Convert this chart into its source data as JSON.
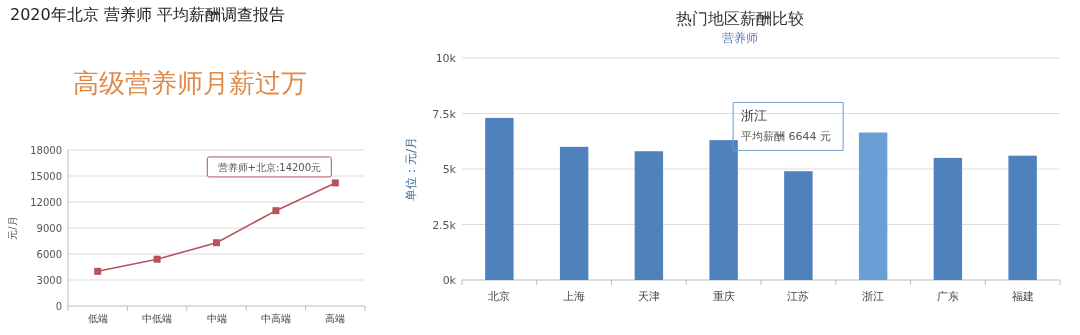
{
  "chart_data": [
    {
      "type": "line",
      "title": "2020年北京 营养师 平均薪酬调查报告",
      "subtitle": "高级营养师月薪过万",
      "ylabel": "元/月",
      "categories": [
        "低端",
        "中低端",
        "中端",
        "中高端",
        "高端"
      ],
      "series": [
        {
          "color": "#b5545c",
          "values": [
            4000,
            5400,
            7300,
            11000,
            14200
          ]
        }
      ],
      "ylim": [
        0,
        18000
      ],
      "yticks": [
        0,
        3000,
        6000,
        9000,
        12000,
        15000,
        18000
      ],
      "grid": "y",
      "marker": "square",
      "line_style": "solid",
      "annotations": [
        {
          "text": "营养师+北京:14200元",
          "x": "高端",
          "y": 14200
        }
      ]
    },
    {
      "type": "bar",
      "title": "热门地区薪酬比较",
      "subtitle": "营养师",
      "ylabel": "单位：元/月",
      "categories": [
        "北京",
        "上海",
        "天津",
        "重庆",
        "江苏",
        "浙江",
        "广东",
        "福建"
      ],
      "values": [
        7300,
        6000,
        5800,
        6300,
        4900,
        6644,
        5500,
        5600
      ],
      "colors": [
        "#4f81bd",
        "#4f81bd",
        "#4f81bd",
        "#4f81bd",
        "#4f81bd",
        "#6a9fd6",
        "#4f81bd",
        "#4f81bd"
      ],
      "ylim": [
        0,
        10000
      ],
      "yticks": [
        {
          "value": 0,
          "label": "0k"
        },
        {
          "value": 2500,
          "label": "2.5k"
        },
        {
          "value": 5000,
          "label": "5k"
        },
        {
          "value": 7500,
          "label": "7.5k"
        },
        {
          "value": 10000,
          "label": "10k"
        }
      ],
      "grid": "y",
      "annotations": [
        "浙江",
        "平均薪酬 6644 元"
      ]
    }
  ]
}
